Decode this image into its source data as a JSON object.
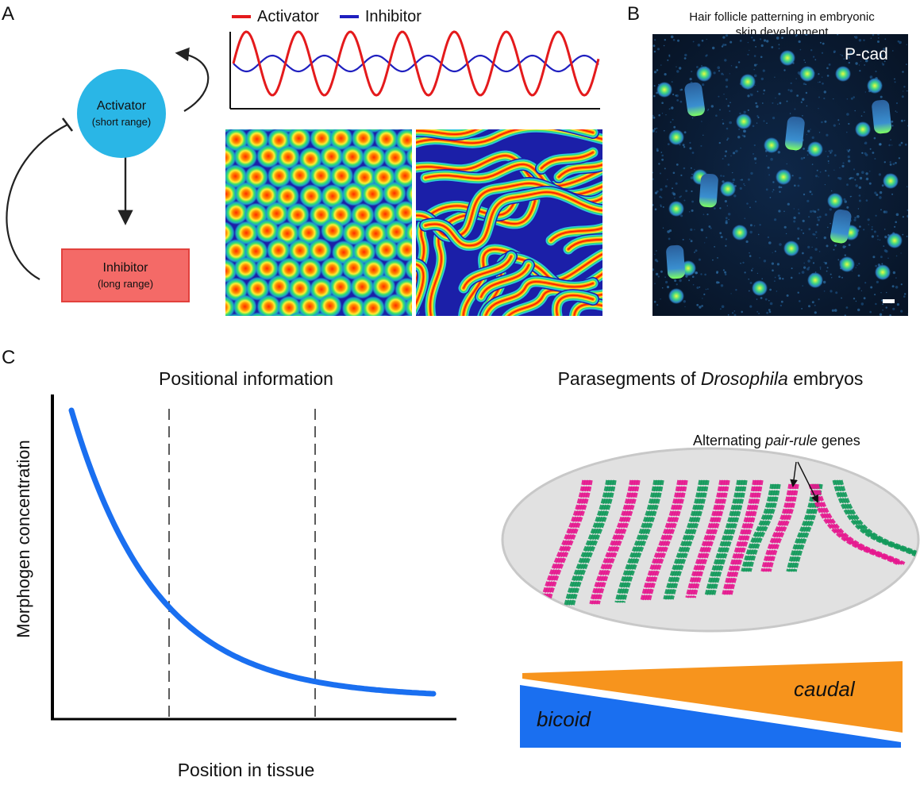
{
  "panels": {
    "a": {
      "letter": "A"
    },
    "b": {
      "letter": "B"
    },
    "c": {
      "letter": "C"
    }
  },
  "panel_a": {
    "activator_node": {
      "title": "Activator",
      "subtitle": "(short range)",
      "color": "#2ab6e6"
    },
    "inhibitor_node": {
      "title": "Inhibitor",
      "subtitle": "(long range)",
      "color": "#f46a67"
    },
    "wave_chart": {
      "legend": [
        {
          "label": "Activator",
          "color": "#e41a1c"
        },
        {
          "label": "Inhibitor",
          "color": "#1f1fbf"
        }
      ]
    },
    "patterns": [
      "spots",
      "stripes"
    ]
  },
  "panel_b": {
    "title_line1": "Hair follicle patterning in embryonic",
    "title_line2": "skin development",
    "image_label": "P-cad"
  },
  "panel_c": {
    "left": {
      "title": "Positional information",
      "ylabel": "Morphogen concentration",
      "xlabel": "Position in tissue",
      "curve_color": "#1a6ff0"
    },
    "right": {
      "title_prefix": "Parasegments of ",
      "title_italic": "Drosophila",
      "title_suffix": " embryos",
      "annotation_prefix": "Alternating ",
      "annotation_italic": "pair-rule",
      "annotation_suffix": " genes",
      "gradient_top": {
        "label": "caudal",
        "color": "#f7941d"
      },
      "gradient_bottom": {
        "label": "bicoid",
        "color": "#1a6ff0"
      },
      "stripe_colors": {
        "magenta": "#e6168e",
        "green": "#11995a"
      }
    }
  },
  "chart_data": {
    "type": "line",
    "title": "Positional information",
    "xlabel": "Position in tissue",
    "ylabel": "Morphogen concentration",
    "series": [
      {
        "values": [
          100,
          62,
          38,
          24,
          15,
          10,
          7,
          5
        ]
      }
    ],
    "x": [
      0,
      1,
      2,
      3,
      4,
      5,
      6,
      7
    ],
    "grid": false
  }
}
